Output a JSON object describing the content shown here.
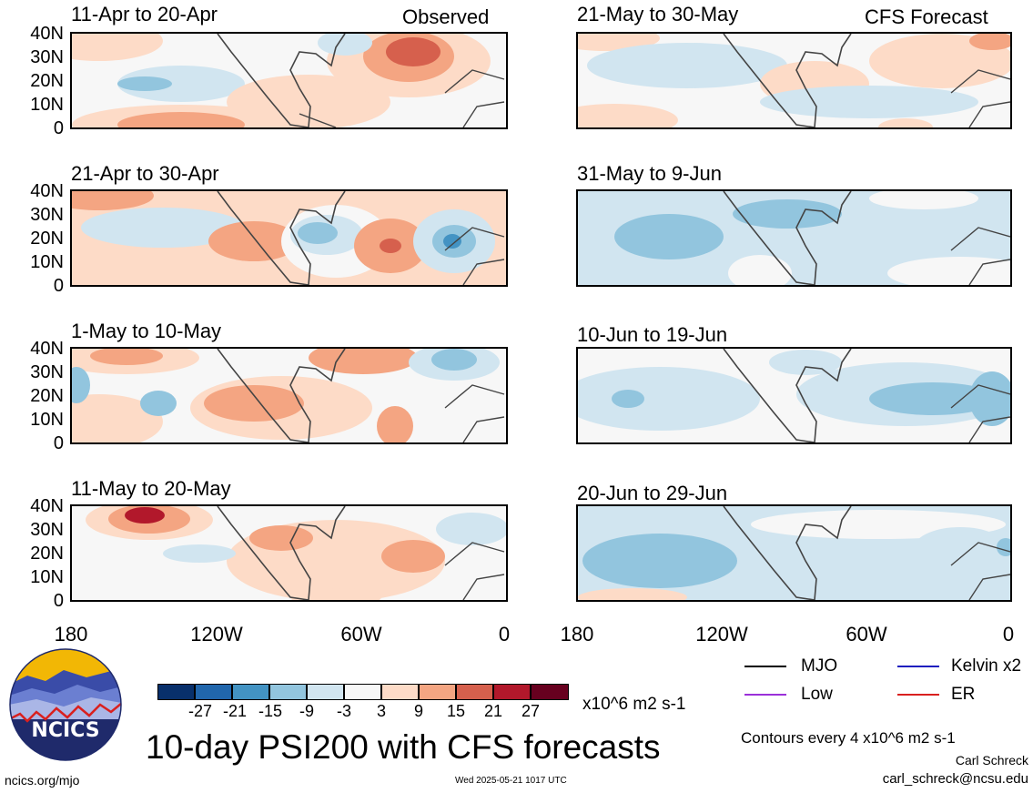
{
  "headers": {
    "observed": "Observed",
    "forecast": "CFS Forecast"
  },
  "panels": {
    "left": [
      "11-Apr to 20-Apr",
      "21-Apr to 30-Apr",
      "1-May to 10-May",
      "11-May to 20-May"
    ],
    "right": [
      "21-May to 30-May",
      "31-May to 9-Jun",
      "10-Jun to 19-Jun",
      "20-Jun to 29-Jun"
    ]
  },
  "lat_labels": [
    "40N",
    "30N",
    "20N",
    "10N",
    "0"
  ],
  "lon_labels": [
    "180",
    "120W",
    "60W",
    "0"
  ],
  "colorbar": {
    "colors": [
      "#08306b",
      "#2166ac",
      "#4393c3",
      "#92c5de",
      "#d1e5f0",
      "#f7f7f7",
      "#fddbc7",
      "#f4a582",
      "#d6604d",
      "#b2182b",
      "#67001f"
    ],
    "labels": [
      "-27",
      "-21",
      "-15",
      "-9",
      "-3",
      "3",
      "9",
      "15",
      "21",
      "27"
    ],
    "units": "x10^6 m2 s-1"
  },
  "title": "10-day PSI200 with CFS forecasts",
  "legend": [
    {
      "label": "MJO",
      "color": "#000000"
    },
    {
      "label": "Kelvin x2",
      "color": "#1f1fbf"
    },
    {
      "label": "Low",
      "color": "#9b30d9"
    },
    {
      "label": "ER",
      "color": "#d9201f"
    }
  ],
  "contour_note": "Contours every 4 x10^6 m2 s-1",
  "author": "Carl Schreck",
  "email": "carl_schreck@ncsu.edu",
  "website": "ncics.org/mjo",
  "timestamp": "Wed 2025-05-21 1017 UTC",
  "logo_text": "NCICS"
}
